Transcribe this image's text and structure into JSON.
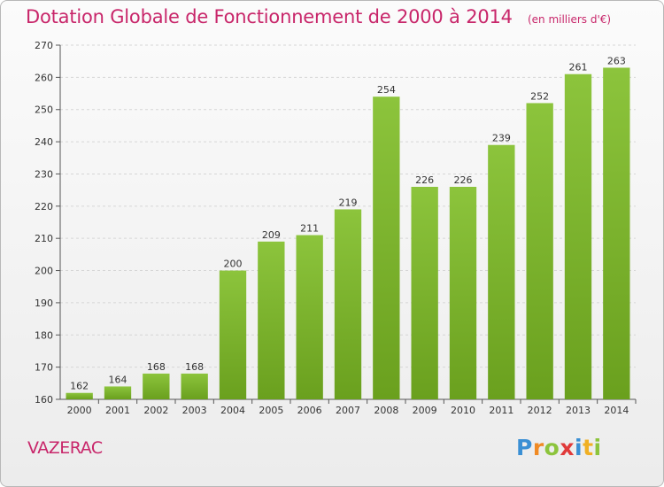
{
  "chart_data": {
    "type": "bar",
    "title": "Dotation Globale de Fonctionnement de 2000 à 2014",
    "subtitle": "(en milliers d'€)",
    "categories": [
      "2000",
      "2001",
      "2002",
      "2003",
      "2004",
      "2005",
      "2006",
      "2007",
      "2008",
      "2009",
      "2010",
      "2011",
      "2012",
      "2013",
      "2014"
    ],
    "values": [
      162,
      164,
      168,
      168,
      200,
      209,
      211,
      219,
      254,
      226,
      226,
      239,
      252,
      261,
      263
    ],
    "ylim": [
      160,
      270
    ],
    "yticks": [
      160,
      170,
      180,
      190,
      200,
      210,
      220,
      230,
      240,
      250,
      260,
      270
    ],
    "grid": true,
    "bar_color": "#8cc43c",
    "bar_color_dark": "#6aa01e"
  },
  "commune": "VAZERAC",
  "logo": {
    "letters": [
      "P",
      "r",
      "o",
      "x",
      "i",
      "t",
      "i"
    ],
    "colors": [
      "#3a8fd4",
      "#f08a24",
      "#8cc43c",
      "#e03a3a",
      "#3a8fd4",
      "#f0b024",
      "#8cc43c"
    ]
  }
}
